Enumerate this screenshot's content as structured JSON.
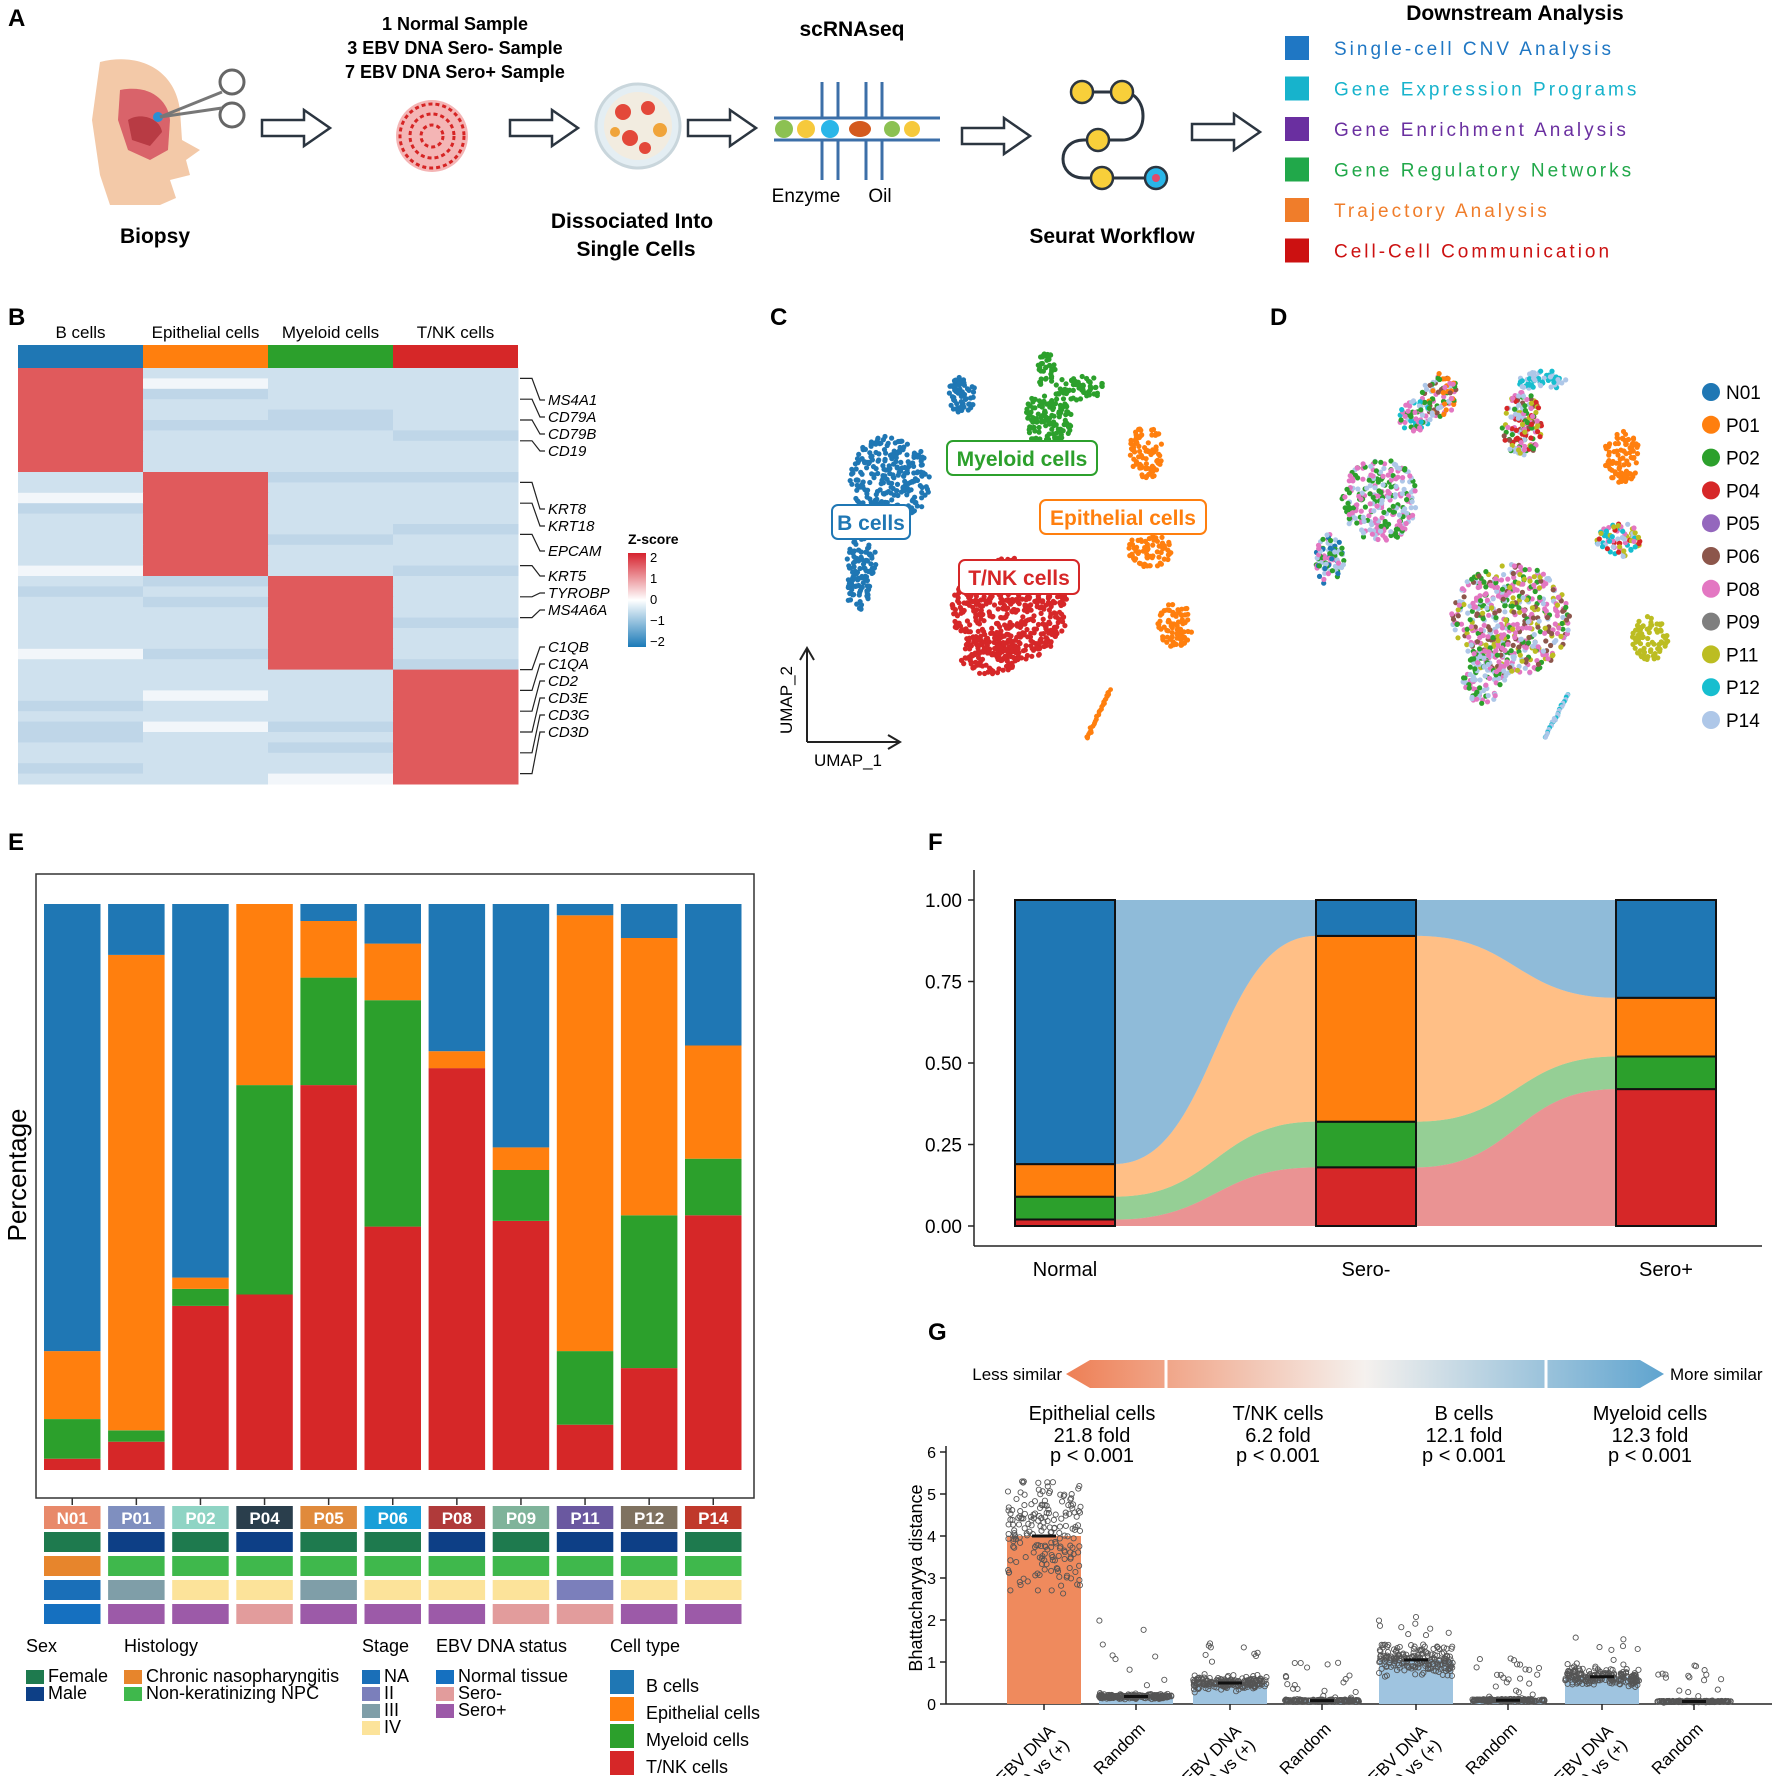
{
  "panel_letters": {
    "a": "A",
    "b": "B",
    "c": "C",
    "d": "D",
    "e": "E",
    "f": "F",
    "g": "G"
  },
  "panel_a": {
    "sample_lines": [
      "1 Normal Sample",
      "3 EBV DNA Sero- Sample",
      "7 EBV DNA Sero+ Sample"
    ],
    "biopsy": "Biopsy",
    "dissociated": [
      "Dissociated Into",
      "Single Cells"
    ],
    "scrnaseq": "scRNAseq",
    "enzyme": "Enzyme",
    "oil": "Oil",
    "seurat": "Seurat Workflow",
    "downstream_title": "Downstream Analysis",
    "downstream_items": [
      {
        "label": "Single-cell CNV Analysis",
        "color": "#1f77c4"
      },
      {
        "label": "Gene Expression Programs",
        "color": "#17b3cc"
      },
      {
        "label": "Gene Enrichment Analysis",
        "color": "#6a2fa0"
      },
      {
        "label": "Gene Regulatory Networks",
        "color": "#21a84a"
      },
      {
        "label": "Trajectory Analysis",
        "color": "#f07d2a"
      },
      {
        "label": "Cell-Cell Communication",
        "color": "#cc1111"
      }
    ]
  },
  "panel_b": {
    "groups": [
      {
        "label": "B cells",
        "color": "#1f77b4"
      },
      {
        "label": "Epithelial cells",
        "color": "#ff7f0e"
      },
      {
        "label": "Myeloid cells",
        "color": "#2ca02c"
      },
      {
        "label": "T/NK cells",
        "color": "#d62728"
      }
    ],
    "genes": [
      "MS4A1",
      "CD79A",
      "CD79B",
      "CD19",
      "KRT8",
      "KRT18",
      "EPCAM",
      "KRT5",
      "TYROBP",
      "MS4A6A",
      "C1QB",
      "C1QA",
      "CD2",
      "CD3E",
      "CD3G",
      "CD3D"
    ],
    "legend_title": "Z-score",
    "legend_ticks": [
      "2",
      "1",
      "0",
      "−1",
      "−2"
    ],
    "high_color": "#e05a5c",
    "low_color": "#cfe1ee"
  },
  "panel_c": {
    "labels": [
      {
        "text": "Myeloid cells",
        "color": "#2ca02c"
      },
      {
        "text": "B cells",
        "color": "#1f77b4"
      },
      {
        "text": "Epithelial cells",
        "color": "#ff7f0e"
      },
      {
        "text": "T/NK cells",
        "color": "#d62728"
      }
    ],
    "axis_x": "UMAP_1",
    "axis_y": "UMAP_2"
  },
  "panel_d": {
    "legend": [
      {
        "label": "N01",
        "color": "#1f77b4"
      },
      {
        "label": "P01",
        "color": "#ff7f0e"
      },
      {
        "label": "P02",
        "color": "#2ca02c"
      },
      {
        "label": "P04",
        "color": "#d62728"
      },
      {
        "label": "P05",
        "color": "#9467bd"
      },
      {
        "label": "P06",
        "color": "#8c564b"
      },
      {
        "label": "P08",
        "color": "#e377c2"
      },
      {
        "label": "P09",
        "color": "#7f7f7f"
      },
      {
        "label": "P11",
        "color": "#bcbd22"
      },
      {
        "label": "P12",
        "color": "#17becf"
      },
      {
        "label": "P14",
        "color": "#aec7e8"
      }
    ]
  },
  "chart_data": [
    {
      "type": "bar",
      "stacked": true,
      "title": "",
      "ylabel": "Percentage",
      "ylim": [
        0,
        1
      ],
      "categories": [
        "N01",
        "P01",
        "P02",
        "P04",
        "P05",
        "P06",
        "P08",
        "P09",
        "P11",
        "P12",
        "P14"
      ],
      "category_colors": [
        "#e8896a",
        "#7f8fbf",
        "#8fd4c4",
        "#2a3e4c",
        "#e08a3c",
        "#1a9fd8",
        "#b03a3a",
        "#7fb39a",
        "#6a58a0",
        "#7f7260",
        "#c0392b"
      ],
      "series": [
        {
          "name": "T/NK cells",
          "color": "#d62728",
          "values": [
            0.02,
            0.05,
            0.29,
            0.31,
            0.68,
            0.43,
            0.71,
            0.44,
            0.08,
            0.18,
            0.45
          ]
        },
        {
          "name": "Myeloid cells",
          "color": "#2ca02c",
          "values": [
            0.07,
            0.02,
            0.03,
            0.37,
            0.19,
            0.4,
            0.0,
            0.09,
            0.13,
            0.27,
            0.1
          ]
        },
        {
          "name": "Epithelial cells",
          "color": "#ff7f0e",
          "values": [
            0.12,
            0.84,
            0.02,
            0.32,
            0.1,
            0.1,
            0.03,
            0.04,
            0.77,
            0.49,
            0.2
          ]
        },
        {
          "name": "B cells",
          "color": "#1f77b4",
          "values": [
            0.79,
            0.09,
            0.66,
            0.0,
            0.03,
            0.07,
            0.26,
            0.43,
            0.02,
            0.06,
            0.25
          ]
        }
      ],
      "annotation_rows": {
        "sex": [
          "Female",
          "Male",
          "Female",
          "Male",
          "Female",
          "Female",
          "Male",
          "Female",
          "Male",
          "Male",
          "Female"
        ],
        "histology": [
          "Chronic nasopharyngitis",
          "Non-keratinizing NPC",
          "Non-keratinizing NPC",
          "Non-keratinizing NPC",
          "Non-keratinizing NPC",
          "Non-keratinizing NPC",
          "Non-keratinizing NPC",
          "Non-keratinizing NPC",
          "Non-keratinizing NPC",
          "Non-keratinizing NPC",
          "Non-keratinizing NPC"
        ],
        "stage": [
          "NA",
          "III",
          "IV",
          "IV",
          "III",
          "IV",
          "IV",
          "IV",
          "II",
          "IV",
          "IV"
        ],
        "ebv": [
          "Normal tissue",
          "Sero+",
          "Sero+",
          "Sero-",
          "Sero+",
          "Sero+",
          "Sero+",
          "Sero-",
          "Sero-",
          "Sero+",
          "Sero+"
        ]
      },
      "legend": {
        "sex": {
          "title": "Sex",
          "items": [
            {
              "label": "Female",
              "color": "#1e7a4e"
            },
            {
              "label": "Male",
              "color": "#0d3f86"
            }
          ]
        },
        "histology": {
          "title": "Histology",
          "items": [
            {
              "label": "Chronic nasopharyngitis",
              "color": "#e7852c"
            },
            {
              "label": "Non-keratinizing NPC",
              "color": "#3fb84c"
            }
          ]
        },
        "stage": {
          "title": "Stage",
          "items": [
            {
              "label": "NA",
              "color": "#1a6fb8"
            },
            {
              "label": "II",
              "color": "#7b7fbb"
            },
            {
              "label": "III",
              "color": "#7f9ea8"
            },
            {
              "label": "IV",
              "color": "#fce39a"
            }
          ]
        },
        "ebv": {
          "title": "EBV DNA status",
          "items": [
            {
              "label": "Normal tissue",
              "color": "#1570c0"
            },
            {
              "label": "Sero-",
              "color": "#e29c9c"
            },
            {
              "label": "Sero+",
              "color": "#9c5aa8"
            }
          ]
        },
        "celltype": {
          "title": "Cell type",
          "items": [
            {
              "label": "B cells",
              "color": "#1f77b4"
            },
            {
              "label": "Epithelial cells",
              "color": "#ff7f0e"
            },
            {
              "label": "Myeloid cells",
              "color": "#2ca02c"
            },
            {
              "label": "T/NK cells",
              "color": "#d62728"
            }
          ]
        }
      }
    },
    {
      "type": "area",
      "subtype": "alluvial stacked bar",
      "categories": [
        "Normal",
        "Sero-",
        "Sero+"
      ],
      "ylim": [
        0,
        1
      ],
      "yticks": [
        "0.00",
        "0.25",
        "0.50",
        "0.75",
        "1.00"
      ],
      "series": [
        {
          "name": "T/NK cells",
          "color": "#d62728",
          "values": [
            0.02,
            0.18,
            0.42
          ]
        },
        {
          "name": "Myeloid cells",
          "color": "#2ca02c",
          "values": [
            0.07,
            0.14,
            0.1
          ]
        },
        {
          "name": "Epithelial cells",
          "color": "#ff7f0e",
          "values": [
            0.1,
            0.57,
            0.18
          ]
        },
        {
          "name": "B cells",
          "color": "#1f77b4",
          "values": [
            0.81,
            0.11,
            0.3
          ]
        }
      ]
    },
    {
      "type": "bar",
      "subtype": "bar with jittered points",
      "ylabel": "Bhattacharyya distance",
      "ylim": [
        0,
        6
      ],
      "yticks": [
        "0",
        "1",
        "2",
        "3",
        "4",
        "5",
        "6"
      ],
      "scale_left": "Less similar",
      "scale_right": "More similar",
      "groups": [
        {
          "cell": "Epithelial cells",
          "fold": "21.8 fold",
          "p": "p < 0.001",
          "ebv_mean": 4.0,
          "random_mean": 0.18,
          "ebv_max": 5.3,
          "random_max": 2.0,
          "color": "#ef8a5d"
        },
        {
          "cell": "T/NK cells",
          "fold": "6.2 fold",
          "p": "p < 0.001",
          "ebv_mean": 0.5,
          "random_mean": 0.08,
          "ebv_max": 1.5,
          "random_max": 1.0,
          "color": "#9fc4e0"
        },
        {
          "cell": "B cells",
          "fold": "12.1 fold",
          "p": "p < 0.001",
          "ebv_mean": 1.05,
          "random_mean": 0.09,
          "ebv_max": 2.1,
          "random_max": 1.1,
          "color": "#9fc4e0"
        },
        {
          "cell": "Myeloid cells",
          "fold": "12.3 fold",
          "p": "p < 0.001",
          "ebv_mean": 0.65,
          "random_mean": 0.06,
          "ebv_max": 1.7,
          "random_max": 1.0,
          "color": "#9fc4e0"
        }
      ],
      "x_labels": [
        "EBV DNA (-) vs (+)",
        "Random",
        "EBV DNA (-) vs (+)",
        "Random",
        "EBV DNA (-) vs (+)",
        "Random",
        "EBV DNA (-) vs (+)",
        "Random"
      ]
    }
  ]
}
